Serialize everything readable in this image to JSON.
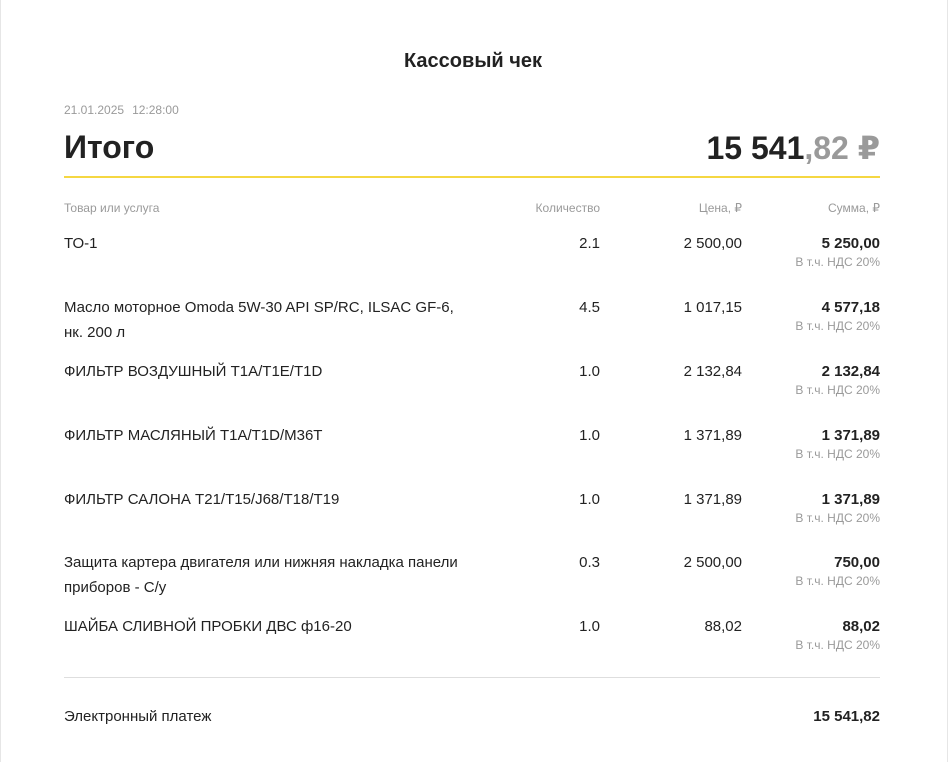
{
  "receipt": {
    "title": "Кассовый чек",
    "date": "21.01.2025",
    "time": "12:28:00",
    "total_label": "Итого",
    "total_int": "15 541",
    "total_frac": ",82 ₽",
    "columns": {
      "item": "Товар или услуга",
      "qty": "Количество",
      "price": "Цена, ₽",
      "sum": "Сумма, ₽"
    },
    "items": [
      {
        "name": "ТО-1",
        "qty": "2.1",
        "price": "2 500,00",
        "sum": "5 250,00",
        "vat": "В т.ч. НДС 20%"
      },
      {
        "name": "Масло моторное Omoda 5W-30 API SP/RC, ILSAC GF-6, нк. 200 л",
        "qty": "4.5",
        "price": "1 017,15",
        "sum": "4 577,18",
        "vat": "В т.ч. НДС 20%"
      },
      {
        "name": "ФИЛЬТР ВОЗДУШНЫЙ T1A/T1E/T1D",
        "qty": "1.0",
        "price": "2 132,84",
        "sum": "2 132,84",
        "vat": "В т.ч. НДС 20%"
      },
      {
        "name": "ФИЛЬТР МАСЛЯНЫЙ T1A/T1D/M36T",
        "qty": "1.0",
        "price": "1 371,89",
        "sum": "1 371,89",
        "vat": "В т.ч. НДС 20%"
      },
      {
        "name": "ФИЛЬТР САЛОНА T21/T15/J68/T18/T19",
        "qty": "1.0",
        "price": "1 371,89",
        "sum": "1 371,89",
        "vat": "В т.ч. НДС 20%"
      },
      {
        "name": "Защита картера двигателя или нижняя накладка панели приборов - С/у",
        "qty": "0.3",
        "price": "2 500,00",
        "sum": "750,00",
        "vat": "В т.ч. НДС 20%"
      },
      {
        "name": "ШАЙБА СЛИВНОЙ ПРОБКИ ДВС ф16-20",
        "qty": "1.0",
        "price": "88,02",
        "sum": "88,02",
        "vat": "В т.ч. НДС 20%"
      }
    ],
    "payment_label": "Электронный платеж",
    "payment_value": "15 541,82",
    "colors": {
      "accent_line": "#f5d742",
      "muted_text": "#9a9a9a"
    }
  }
}
